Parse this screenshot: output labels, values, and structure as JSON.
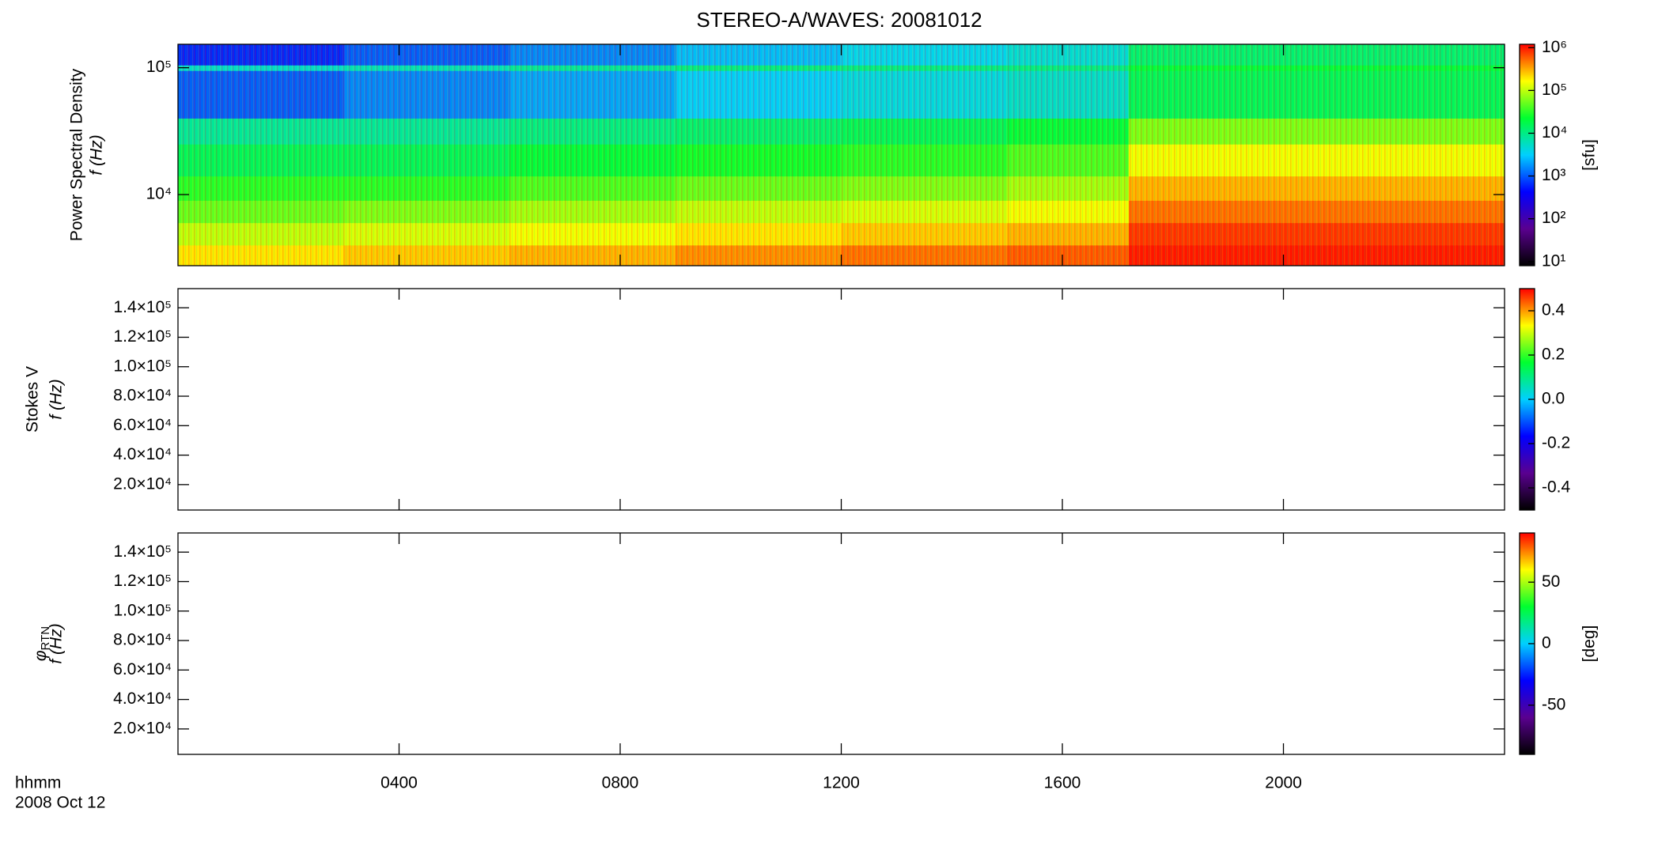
{
  "chart_data": [
    {
      "type": "heatmap",
      "title": "STEREO-A/WAVES: 20081012",
      "ylabel": "Power Spectral Density",
      "ylabel2": "f (Hz)",
      "colorbar_label": "[sfu]",
      "xlim": [
        0,
        24
      ],
      "ylim": [
        2750,
        153000
      ],
      "yscale": "log",
      "yticks": [
        {
          "value": 10000,
          "label": "10⁴"
        },
        {
          "value": 100000,
          "label": "10⁵"
        }
      ],
      "x_edges": [
        0,
        3,
        6,
        9,
        12,
        15,
        17.2,
        20,
        24
      ],
      "y_edges": [
        2750,
        4000,
        6000,
        9000,
        14000,
        25000,
        40000,
        95000,
        105000,
        153000
      ],
      "z": [
        [
          200000,
          250000,
          300000,
          400000,
          500000,
          600000,
          1000000,
          1000000
        ],
        [
          100000,
          120000,
          150000,
          200000,
          250000,
          300000,
          800000,
          800000
        ],
        [
          50000,
          60000,
          80000,
          100000,
          120000,
          150000,
          500000,
          500000
        ],
        [
          30000,
          30000,
          40000,
          50000,
          60000,
          80000,
          300000,
          300000
        ],
        [
          15000,
          15000,
          20000,
          25000,
          30000,
          40000,
          150000,
          150000
        ],
        [
          8000,
          8000,
          10000,
          12000,
          15000,
          20000,
          60000,
          60000
        ],
        [
          1000,
          1500,
          2000,
          3000,
          4000,
          5000,
          15000,
          15000
        ],
        [
          5000,
          6000,
          8000,
          10000,
          10000,
          10000,
          20000,
          20000
        ],
        [
          600,
          1000,
          1500,
          2500,
          3500,
          4500,
          12000,
          12000
        ]
      ],
      "zscale": "log",
      "zlim": [
        8,
        1200000
      ],
      "zticks": [
        {
          "value": 10,
          "label": "10¹"
        },
        {
          "value": 100,
          "label": "10²"
        },
        {
          "value": 1000,
          "label": "10³"
        },
        {
          "value": 10000,
          "label": "10⁴"
        },
        {
          "value": 100000,
          "label": "10⁵"
        },
        {
          "value": 1000000,
          "label": "10⁶"
        }
      ],
      "colormap": [
        "#000000",
        "#5a0090",
        "#0000ff",
        "#00d0ff",
        "#00ff30",
        "#ffff00",
        "#ff0000"
      ]
    },
    {
      "type": "heatmap",
      "ylabel": "Stokes V",
      "ylabel2": "f (Hz)",
      "xlim": [
        0,
        24
      ],
      "ylim": [
        2750,
        153000
      ],
      "yticks": [
        {
          "value": 20000,
          "label": "2.0×10⁴"
        },
        {
          "value": 40000,
          "label": "4.0×10⁴"
        },
        {
          "value": 60000,
          "label": "6.0×10⁴"
        },
        {
          "value": 80000,
          "label": "8.0×10⁴"
        },
        {
          "value": 100000,
          "label": "1.0×10⁵"
        },
        {
          "value": 120000,
          "label": "1.2×10⁵"
        },
        {
          "value": 140000,
          "label": "1.4×10⁵"
        }
      ],
      "zlim": [
        -0.5,
        0.5
      ],
      "zticks": [
        -0.4,
        -0.2,
        {
          "value": 0,
          "label": "0.0"
        },
        0.2,
        0.4
      ],
      "colormap": [
        "#000000",
        "#5a0090",
        "#0000ff",
        "#00d0ff",
        "#00ff30",
        "#ffff00",
        "#ff0000"
      ]
    },
    {
      "type": "heatmap",
      "ylabel_symbol": "φ",
      "ylabel_subscript": "RTN",
      "ylabel2": "f (Hz)",
      "colorbar_label": "[deg]",
      "xlabel": "hhmm",
      "xlabel2": "2008 Oct 12",
      "xlim": [
        0,
        24
      ],
      "xticks": [
        {
          "value": 4,
          "label": "0400"
        },
        {
          "value": 8,
          "label": "0800"
        },
        {
          "value": 12,
          "label": "1200"
        },
        {
          "value": 16,
          "label": "1600"
        },
        {
          "value": 20,
          "label": "2000"
        }
      ],
      "ylim": [
        2750,
        153000
      ],
      "yticks": [
        {
          "value": 20000,
          "label": "2.0×10⁴"
        },
        {
          "value": 40000,
          "label": "4.0×10⁴"
        },
        {
          "value": 60000,
          "label": "6.0×10⁴"
        },
        {
          "value": 80000,
          "label": "8.0×10⁴"
        },
        {
          "value": 100000,
          "label": "1.0×10⁵"
        },
        {
          "value": 120000,
          "label": "1.2×10⁵"
        },
        {
          "value": 140000,
          "label": "1.4×10⁵"
        }
      ],
      "zlim": [
        -90,
        90
      ],
      "zticks": [
        -50,
        0,
        50
      ],
      "colormap": [
        "#000000",
        "#5a0090",
        "#0000ff",
        "#00d0ff",
        "#00ff30",
        "#ffff00",
        "#ff0000"
      ]
    }
  ]
}
